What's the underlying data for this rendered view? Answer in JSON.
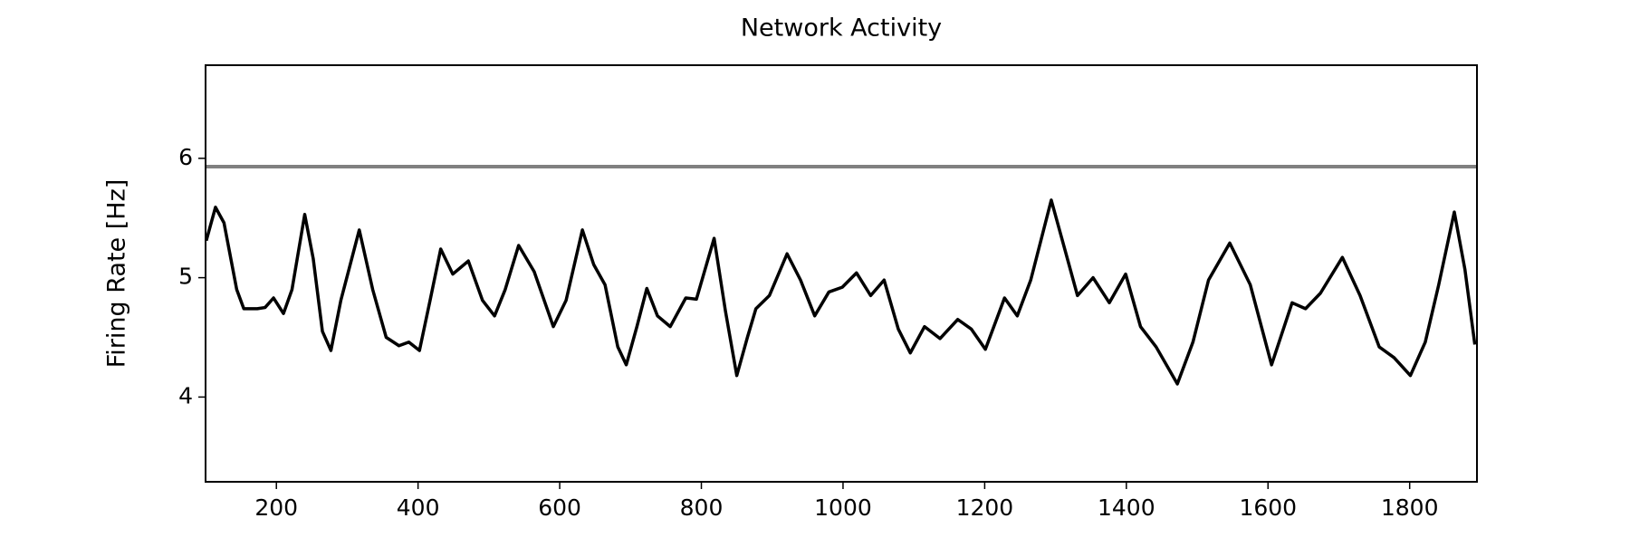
{
  "chart_data": {
    "type": "line",
    "title": "Network Activity",
    "y_label": "Firing Rate [Hz]",
    "x": [
      101,
      114,
      126,
      144,
      154,
      173,
      184,
      196,
      210,
      222,
      240,
      252,
      265,
      277,
      291,
      317,
      336,
      355,
      373,
      387,
      402,
      417,
      432,
      449,
      471,
      491,
      508,
      523,
      542,
      564,
      591,
      609,
      632,
      648,
      664,
      682,
      694,
      709,
      723,
      738,
      756,
      778,
      793,
      818,
      834,
      850,
      865,
      877,
      896,
      921,
      940,
      960,
      980,
      999,
      1019,
      1039,
      1058,
      1078,
      1095,
      1115,
      1137,
      1162,
      1181,
      1201,
      1228,
      1246,
      1265,
      1294,
      1313,
      1331,
      1353,
      1376,
      1399,
      1420,
      1442,
      1472,
      1494,
      1516,
      1546,
      1575,
      1605,
      1634,
      1653,
      1674,
      1705,
      1730,
      1757,
      1778,
      1801,
      1822,
      1841,
      1863,
      1878,
      1892
    ],
    "values": [
      5.31,
      5.59,
      5.46,
      4.9,
      4.74,
      4.74,
      4.75,
      4.83,
      4.7,
      4.9,
      5.53,
      5.16,
      4.55,
      4.39,
      4.81,
      5.4,
      4.9,
      4.5,
      4.43,
      4.46,
      4.39,
      4.81,
      5.24,
      5.03,
      5.14,
      4.81,
      4.68,
      4.9,
      5.27,
      5.05,
      4.59,
      4.81,
      5.4,
      5.11,
      4.94,
      4.42,
      4.27,
      4.59,
      4.91,
      4.68,
      4.59,
      4.83,
      4.82,
      5.33,
      4.72,
      4.18,
      4.5,
      4.74,
      4.85,
      5.2,
      4.98,
      4.68,
      4.88,
      4.92,
      5.04,
      4.85,
      4.98,
      4.57,
      4.37,
      4.59,
      4.49,
      4.65,
      4.57,
      4.4,
      4.83,
      4.68,
      4.98,
      5.65,
      5.24,
      4.85,
      5.0,
      4.79,
      5.03,
      4.59,
      4.42,
      4.11,
      4.46,
      4.98,
      5.29,
      4.94,
      4.27,
      4.79,
      4.74,
      4.87,
      5.17,
      4.85,
      4.42,
      4.33,
      4.18,
      4.46,
      4.94,
      5.55,
      5.07,
      4.44
    ],
    "color": "#000000",
    "reference_line": 5.93,
    "reference_color": "#808080",
    "xlim": [
      100,
      1895
    ],
    "xticks": [
      200,
      400,
      600,
      800,
      1000,
      1200,
      1400,
      1600,
      1800
    ],
    "ylim": [
      3.29,
      6.78
    ],
    "yticks": [
      4,
      5,
      6
    ]
  }
}
